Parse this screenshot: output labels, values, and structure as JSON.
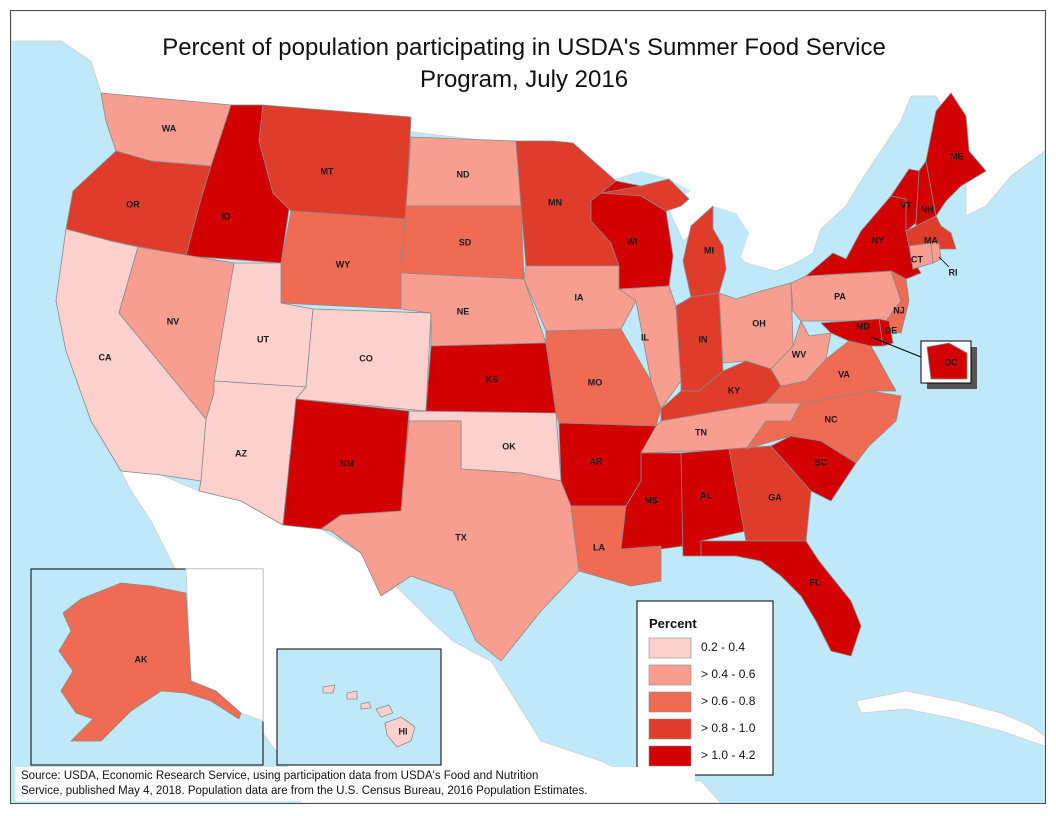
{
  "title": {
    "line1": "Percent of population participating in USDA's Summer Food Service",
    "line2": "Program, July 2016"
  },
  "source": {
    "line1": "Source: USDA, Economic Research Service, using participation data from USDA's Food and Nutrition",
    "line2": "Service, published May 4, 2018. Population data are from the U.S. Census Bureau, 2016 Population Estimates."
  },
  "legend": {
    "title": "Percent",
    "classes": [
      {
        "label": "0.2 - 0.4",
        "color": "#fbd0cd"
      },
      {
        "label": "> 0.4 - 0.6",
        "color": "#f79e91"
      },
      {
        "label": "> 0.6 - 0.8",
        "color": "#f06b54"
      },
      {
        "label": "> 0.8 - 1.0",
        "color": "#e03c2c"
      },
      {
        "label": "> 1.0 - 4.2",
        "color": "#d20000"
      }
    ]
  },
  "colors": {
    "water": "#bfe9f8",
    "land_other": "#ffffff",
    "state_border": "#8a8a8a"
  },
  "states": [
    {
      "abbr": "WA",
      "class": 1
    },
    {
      "abbr": "OR",
      "class": 3
    },
    {
      "abbr": "CA",
      "class": 0
    },
    {
      "abbr": "ID",
      "class": 4
    },
    {
      "abbr": "NV",
      "class": 1
    },
    {
      "abbr": "MT",
      "class": 3
    },
    {
      "abbr": "WY",
      "class": 2
    },
    {
      "abbr": "UT",
      "class": 0
    },
    {
      "abbr": "AZ",
      "class": 0
    },
    {
      "abbr": "CO",
      "class": 0
    },
    {
      "abbr": "NM",
      "class": 4
    },
    {
      "abbr": "ND",
      "class": 1
    },
    {
      "abbr": "SD",
      "class": 2
    },
    {
      "abbr": "NE",
      "class": 1
    },
    {
      "abbr": "KS",
      "class": 4
    },
    {
      "abbr": "OK",
      "class": 0
    },
    {
      "abbr": "TX",
      "class": 1
    },
    {
      "abbr": "MN",
      "class": 3
    },
    {
      "abbr": "IA",
      "class": 1
    },
    {
      "abbr": "MO",
      "class": 2
    },
    {
      "abbr": "AR",
      "class": 4
    },
    {
      "abbr": "LA",
      "class": 2
    },
    {
      "abbr": "WI",
      "class": 4
    },
    {
      "abbr": "IL",
      "class": 1
    },
    {
      "abbr": "MI",
      "class": 3
    },
    {
      "abbr": "IN",
      "class": 3
    },
    {
      "abbr": "OH",
      "class": 1
    },
    {
      "abbr": "KY",
      "class": 3
    },
    {
      "abbr": "TN",
      "class": 1
    },
    {
      "abbr": "MS",
      "class": 4
    },
    {
      "abbr": "AL",
      "class": 4
    },
    {
      "abbr": "GA",
      "class": 3
    },
    {
      "abbr": "FL",
      "class": 4
    },
    {
      "abbr": "SC",
      "class": 4
    },
    {
      "abbr": "NC",
      "class": 2
    },
    {
      "abbr": "VA",
      "class": 2
    },
    {
      "abbr": "WV",
      "class": 1
    },
    {
      "abbr": "PA",
      "class": 1
    },
    {
      "abbr": "NY",
      "class": 4
    },
    {
      "abbr": "VT",
      "class": 4
    },
    {
      "abbr": "NH",
      "class": 4
    },
    {
      "abbr": "ME",
      "class": 4
    },
    {
      "abbr": "MA",
      "class": 3
    },
    {
      "abbr": "CT",
      "class": 1
    },
    {
      "abbr": "RI",
      "class": 1
    },
    {
      "abbr": "NJ",
      "class": 2
    },
    {
      "abbr": "DE",
      "class": 4
    },
    {
      "abbr": "MD",
      "class": 4
    },
    {
      "abbr": "DC",
      "class": 4
    },
    {
      "abbr": "AK",
      "class": 2
    },
    {
      "abbr": "HI",
      "class": 0
    }
  ]
}
